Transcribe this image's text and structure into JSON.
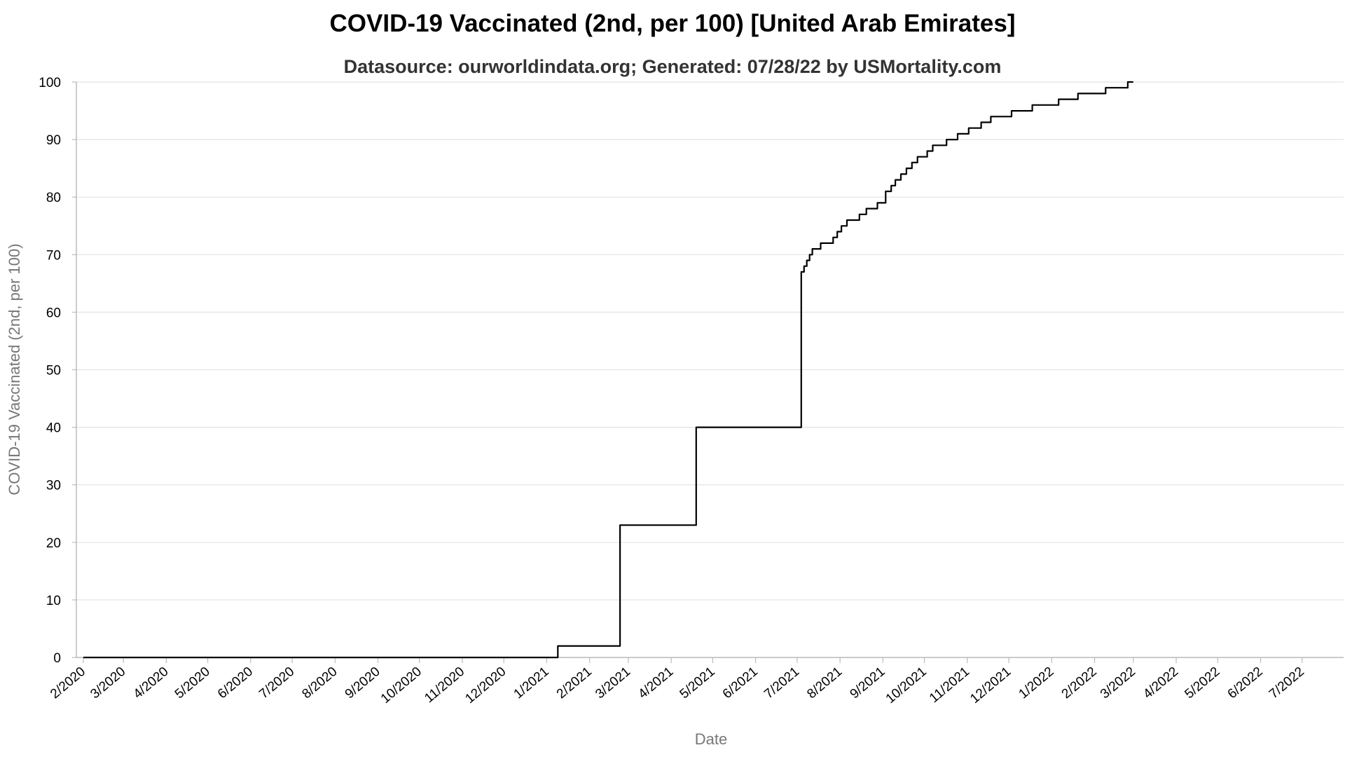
{
  "chart_data": {
    "type": "line",
    "title": "COVID-19 Vaccinated (2nd, per 100) [United Arab Emirates]",
    "subtitle": "Datasource: ourworldindata.org; Generated: 07/28/22 by USMortality.com",
    "xlabel": "Date",
    "ylabel": "COVID-19 Vaccinated (2nd, per 100)",
    "ylim": [
      0,
      100
    ],
    "xlim": [
      "2020-01-27",
      "2022-07-31"
    ],
    "yticks": [
      0,
      10,
      20,
      30,
      40,
      50,
      60,
      70,
      80,
      90,
      100
    ],
    "xticks": [
      "2/2020",
      "3/2020",
      "4/2020",
      "5/2020",
      "6/2020",
      "7/2020",
      "8/2020",
      "9/2020",
      "10/2020",
      "11/2020",
      "12/2020",
      "1/2021",
      "2/2021",
      "3/2021",
      "4/2021",
      "5/2021",
      "6/2021",
      "7/2021",
      "8/2021",
      "9/2021",
      "10/2021",
      "11/2021",
      "12/2021",
      "1/2022",
      "2/2022",
      "3/2022",
      "4/2022",
      "5/2022",
      "6/2022",
      "7/2022"
    ],
    "grid": true,
    "series": [
      {
        "name": "",
        "color": "#000000",
        "step": true,
        "x": [
          "2020-02-01",
          "2021-01-08",
          "2021-01-09",
          "2021-02-22",
          "2021-02-23",
          "2021-04-18",
          "2021-04-19",
          "2021-07-03",
          "2021-07-04",
          "2021-07-06",
          "2021-07-08",
          "2021-07-10",
          "2021-07-12",
          "2021-07-14",
          "2021-07-18",
          "2021-07-22",
          "2021-07-27",
          "2021-07-30",
          "2021-08-02",
          "2021-08-04",
          "2021-08-06",
          "2021-08-12",
          "2021-08-15",
          "2021-08-20",
          "2021-08-26",
          "2021-08-28",
          "2021-09-01",
          "2021-09-03",
          "2021-09-05",
          "2021-09-07",
          "2021-09-10",
          "2021-09-14",
          "2021-09-18",
          "2021-09-22",
          "2021-09-26",
          "2021-10-03",
          "2021-10-07",
          "2021-10-17",
          "2021-10-25",
          "2021-11-02",
          "2021-11-11",
          "2021-11-18",
          "2021-12-03",
          "2021-12-18",
          "2022-01-06",
          "2022-01-20",
          "2022-02-09",
          "2022-02-25",
          "2022-03-01"
        ],
        "y": [
          0,
          0,
          2,
          2,
          23,
          23,
          40,
          40,
          67,
          68,
          69,
          70,
          71,
          71,
          72,
          72,
          73,
          74,
          75,
          75,
          76,
          76,
          77,
          78,
          78,
          79,
          79,
          81,
          81,
          82,
          83,
          84,
          85,
          86,
          87,
          88,
          89,
          90,
          91,
          92,
          93,
          94,
          95,
          96,
          97,
          98,
          99,
          100,
          100
        ]
      }
    ]
  }
}
